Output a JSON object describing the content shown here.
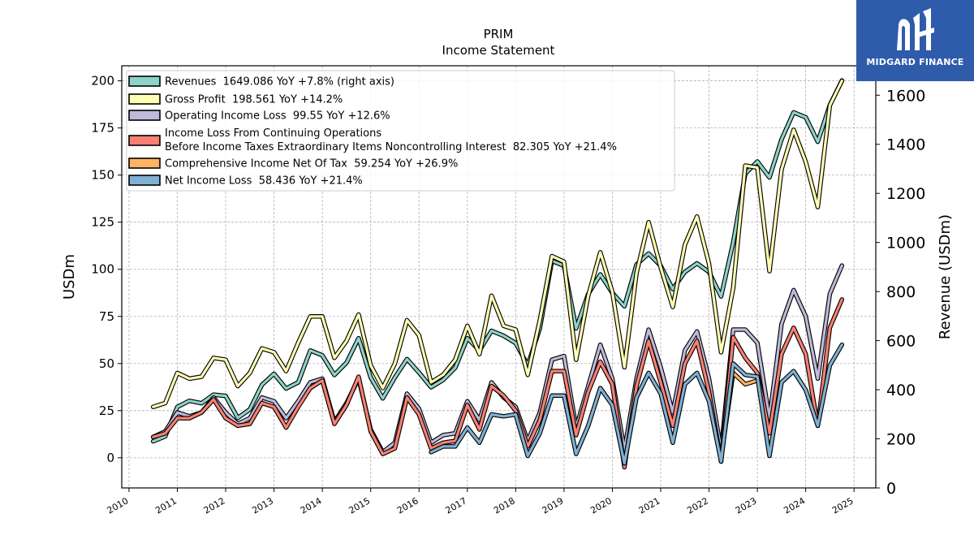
{
  "chart_data": {
    "type": "line",
    "title": "PRIM",
    "subtitle": "Income Statement",
    "ylabel_left": "USDm",
    "ylabel_right": "Revenue (USDm)",
    "left_ylim": [
      -16,
      208
    ],
    "right_ylim": [
      0,
      1720
    ],
    "left_yticks": [
      0,
      25,
      50,
      75,
      100,
      125,
      150,
      175,
      200
    ],
    "right_yticks": [
      0,
      200,
      400,
      600,
      800,
      1000,
      1200,
      1400,
      1600
    ],
    "xlim": [
      2009.85,
      2025.45
    ],
    "xticks": [
      "2010",
      "2011",
      "2012",
      "2013",
      "2014",
      "2015",
      "2016",
      "2017",
      "2018",
      "2019",
      "2020",
      "2021",
      "2022",
      "2023",
      "2024",
      "2025"
    ],
    "grid": true,
    "legend_position": "top-left",
    "colors": {
      "revenues": "#8dd3c7",
      "gross_profit": "#ffffb3",
      "operating_income": "#bebada",
      "pretax_income": "#fb8072",
      "comprehensive_income": "#fdb462",
      "net_income": "#80b1d3"
    },
    "series": [
      {
        "key": "revenues",
        "name": "Revenues",
        "legend_label": "Revenues  1649.086 YoY +7.8% (right axis)",
        "axis": "right",
        "color": "#8dd3c7",
        "x": [
          2010.5,
          2010.75,
          2011.0,
          2011.25,
          2011.5,
          2011.75,
          2012.0,
          2012.25,
          2012.5,
          2012.75,
          2013.0,
          2013.25,
          2013.5,
          2013.75,
          2014.0,
          2014.25,
          2014.5,
          2014.75,
          2015.0,
          2015.25,
          2015.5,
          2015.75,
          2016.0,
          2016.25,
          2016.5,
          2016.75,
          2017.0,
          2017.25,
          2017.5,
          2017.75,
          2018.0,
          2018.25,
          2018.5,
          2018.75,
          2019.0,
          2019.25,
          2019.5,
          2019.75,
          2020.0,
          2020.25,
          2020.5,
          2020.75,
          2021.0,
          2021.25,
          2021.5,
          2021.75,
          2022.0,
          2022.25,
          2022.5,
          2022.75,
          2023.0,
          2023.25,
          2023.5,
          2023.75,
          2024.0,
          2024.25,
          2024.5,
          2024.75
        ],
        "values": [
          190,
          210,
          330,
          355,
          345,
          380,
          375,
          285,
          320,
          420,
          465,
          405,
          430,
          560,
          540,
          460,
          510,
          610,
          450,
          365,
          450,
          525,
          470,
          410,
          440,
          490,
          610,
          560,
          640,
          620,
          590,
          500,
          650,
          925,
          905,
          650,
          790,
          870,
          795,
          740,
          910,
          955,
          905,
          810,
          880,
          915,
          880,
          780,
          1000,
          1280,
          1330,
          1265,
          1420,
          1530,
          1510,
          1410,
          1560,
          1660
        ]
      },
      {
        "key": "gross_profit",
        "name": "Gross Profit",
        "legend_label": "Gross Profit  198.561 YoY +14.2%",
        "axis": "left",
        "color": "#ffffb3",
        "x": [
          2010.5,
          2010.75,
          2011.0,
          2011.25,
          2011.5,
          2011.75,
          2012.0,
          2012.25,
          2012.5,
          2012.75,
          2013.0,
          2013.25,
          2013.5,
          2013.75,
          2014.0,
          2014.25,
          2014.5,
          2014.75,
          2015.0,
          2015.25,
          2015.5,
          2015.75,
          2016.0,
          2016.25,
          2016.5,
          2016.75,
          2017.0,
          2017.25,
          2017.5,
          2017.75,
          2018.0,
          2018.25,
          2018.5,
          2018.75,
          2019.0,
          2019.25,
          2019.5,
          2019.75,
          2020.0,
          2020.25,
          2020.5,
          2020.75,
          2021.0,
          2021.25,
          2021.5,
          2021.75,
          2022.0,
          2022.25,
          2022.5,
          2022.75,
          2023.0,
          2023.25,
          2023.5,
          2023.75,
          2024.0,
          2024.25,
          2024.5,
          2024.75
        ],
        "values": [
          27,
          29,
          45,
          42,
          43,
          53,
          52,
          38,
          45,
          58,
          56,
          46,
          61,
          75,
          75,
          53,
          62,
          76,
          49,
          37,
          50,
          73,
          65,
          40,
          44,
          52,
          70,
          55,
          86,
          70,
          68,
          44,
          73,
          107,
          104,
          52,
          86,
          109,
          88,
          48,
          98,
          125,
          101,
          80,
          113,
          128,
          103,
          56,
          90,
          155,
          154,
          99,
          153,
          174,
          157,
          133,
          187,
          200
        ]
      },
      {
        "key": "operating_income",
        "name": "Operating Income Loss",
        "legend_label": "Operating Income Loss  99.55 YoY +12.6%",
        "axis": "left",
        "color": "#bebada",
        "x": [
          2010.5,
          2010.75,
          2011.0,
          2011.25,
          2011.5,
          2011.75,
          2012.0,
          2012.25,
          2012.5,
          2012.75,
          2013.0,
          2013.25,
          2013.5,
          2013.75,
          2014.0,
          2014.25,
          2014.5,
          2014.75,
          2015.0,
          2015.25,
          2015.5,
          2015.75,
          2016.0,
          2016.25,
          2016.5,
          2016.75,
          2017.0,
          2017.25,
          2017.5,
          2017.75,
          2018.0,
          2018.25,
          2018.5,
          2018.75,
          2019.0,
          2019.25,
          2019.5,
          2019.75,
          2020.0,
          2020.25,
          2020.5,
          2020.75,
          2021.0,
          2021.25,
          2021.5,
          2021.75,
          2022.0,
          2022.25,
          2022.5,
          2022.75,
          2023.0,
          2023.25,
          2023.5,
          2023.75,
          2024.0,
          2024.25,
          2024.5,
          2024.75
        ],
        "values": [
          11,
          14,
          24,
          22,
          24,
          32,
          24,
          18,
          21,
          32,
          30,
          21,
          30,
          40,
          42,
          19,
          29,
          42,
          15,
          3,
          8,
          34,
          26,
          8,
          12,
          13,
          30,
          20,
          40,
          32,
          27,
          9,
          24,
          52,
          54,
          16,
          38,
          60,
          42,
          4,
          42,
          68,
          48,
          24,
          57,
          67,
          42,
          4,
          68,
          68,
          61,
          21,
          71,
          89,
          75,
          42,
          87,
          102
        ]
      },
      {
        "key": "pretax_income",
        "name": "Income Loss From Continuing Operations Before Income Taxes Extraordinary Items Noncontrolling Interest",
        "legend_label_line1": "Income Loss From Continuing Operations",
        "legend_label_line2": "Before Income Taxes Extraordinary Items Noncontrolling Interest  82.305 YoY +21.4%",
        "axis": "left",
        "color": "#fb8072",
        "x": [
          2010.5,
          2010.75,
          2011.0,
          2011.25,
          2011.5,
          2011.75,
          2012.0,
          2012.25,
          2012.5,
          2012.75,
          2013.0,
          2013.25,
          2013.5,
          2013.75,
          2014.0,
          2014.25,
          2014.5,
          2014.75,
          2015.0,
          2015.25,
          2015.5,
          2015.75,
          2016.0,
          2016.25,
          2016.5,
          2016.75,
          2017.0,
          2017.25,
          2017.5,
          2017.75,
          2018.0,
          2018.25,
          2018.5,
          2018.75,
          2019.0,
          2019.25,
          2019.5,
          2019.75,
          2020.0,
          2020.25,
          2020.5,
          2020.75,
          2021.0,
          2021.25,
          2021.5,
          2021.75,
          2022.0,
          2022.25,
          2022.5,
          2022.75,
          2023.0,
          2023.25,
          2023.5,
          2023.75,
          2024.0,
          2024.25,
          2024.5,
          2024.75
        ],
        "values": [
          11,
          13,
          21,
          21,
          24,
          31,
          21,
          17,
          18,
          29,
          27,
          16,
          27,
          37,
          41,
          18,
          28,
          43,
          14,
          2,
          5,
          32,
          23,
          5,
          8,
          9,
          28,
          15,
          38,
          33,
          25,
          6,
          20,
          46,
          46,
          12,
          35,
          51,
          39,
          -5,
          38,
          62,
          40,
          17,
          50,
          62,
          35,
          -2,
          64,
          53,
          45,
          13,
          55,
          69,
          55,
          17,
          69,
          84
        ]
      },
      {
        "key": "comprehensive_income",
        "name": "Comprehensive Income Net Of Tax",
        "legend_label": "Comprehensive Income Net Of Tax  59.254 YoY +26.9%",
        "axis": "left",
        "color": "#fdb462",
        "x": [
          2022.25,
          2022.5,
          2022.75,
          2023.0
        ],
        "values": [
          0,
          45,
          39,
          41
        ]
      },
      {
        "key": "net_income",
        "name": "Net Income Loss",
        "legend_label": "Net Income Loss  58.436 YoY +21.4%",
        "axis": "left",
        "color": "#80b1d3",
        "x": [
          2016.25,
          2016.5,
          2016.75,
          2017.0,
          2017.25,
          2017.5,
          2017.75,
          2018.0,
          2018.25,
          2018.5,
          2018.75,
          2019.0,
          2019.25,
          2019.5,
          2019.75,
          2020.0,
          2020.25,
          2020.5,
          2020.75,
          2021.0,
          2021.25,
          2021.5,
          2021.75,
          2022.0,
          2022.25,
          2022.5,
          2022.75,
          2023.0,
          2023.25,
          2023.5,
          2023.75,
          2024.0,
          2024.25,
          2024.5,
          2024.75
        ],
        "values": [
          3,
          6,
          6,
          16,
          8,
          23,
          22,
          23,
          1,
          13,
          33,
          33,
          2,
          17,
          37,
          28,
          -3,
          32,
          45,
          34,
          8,
          39,
          45,
          30,
          -2,
          50,
          44,
          43,
          1,
          40,
          46,
          36,
          17,
          49,
          60
        ]
      }
    ]
  },
  "logo": {
    "text": "MIDGARD FINANCE",
    "icon": "midgard-logo-icon"
  }
}
